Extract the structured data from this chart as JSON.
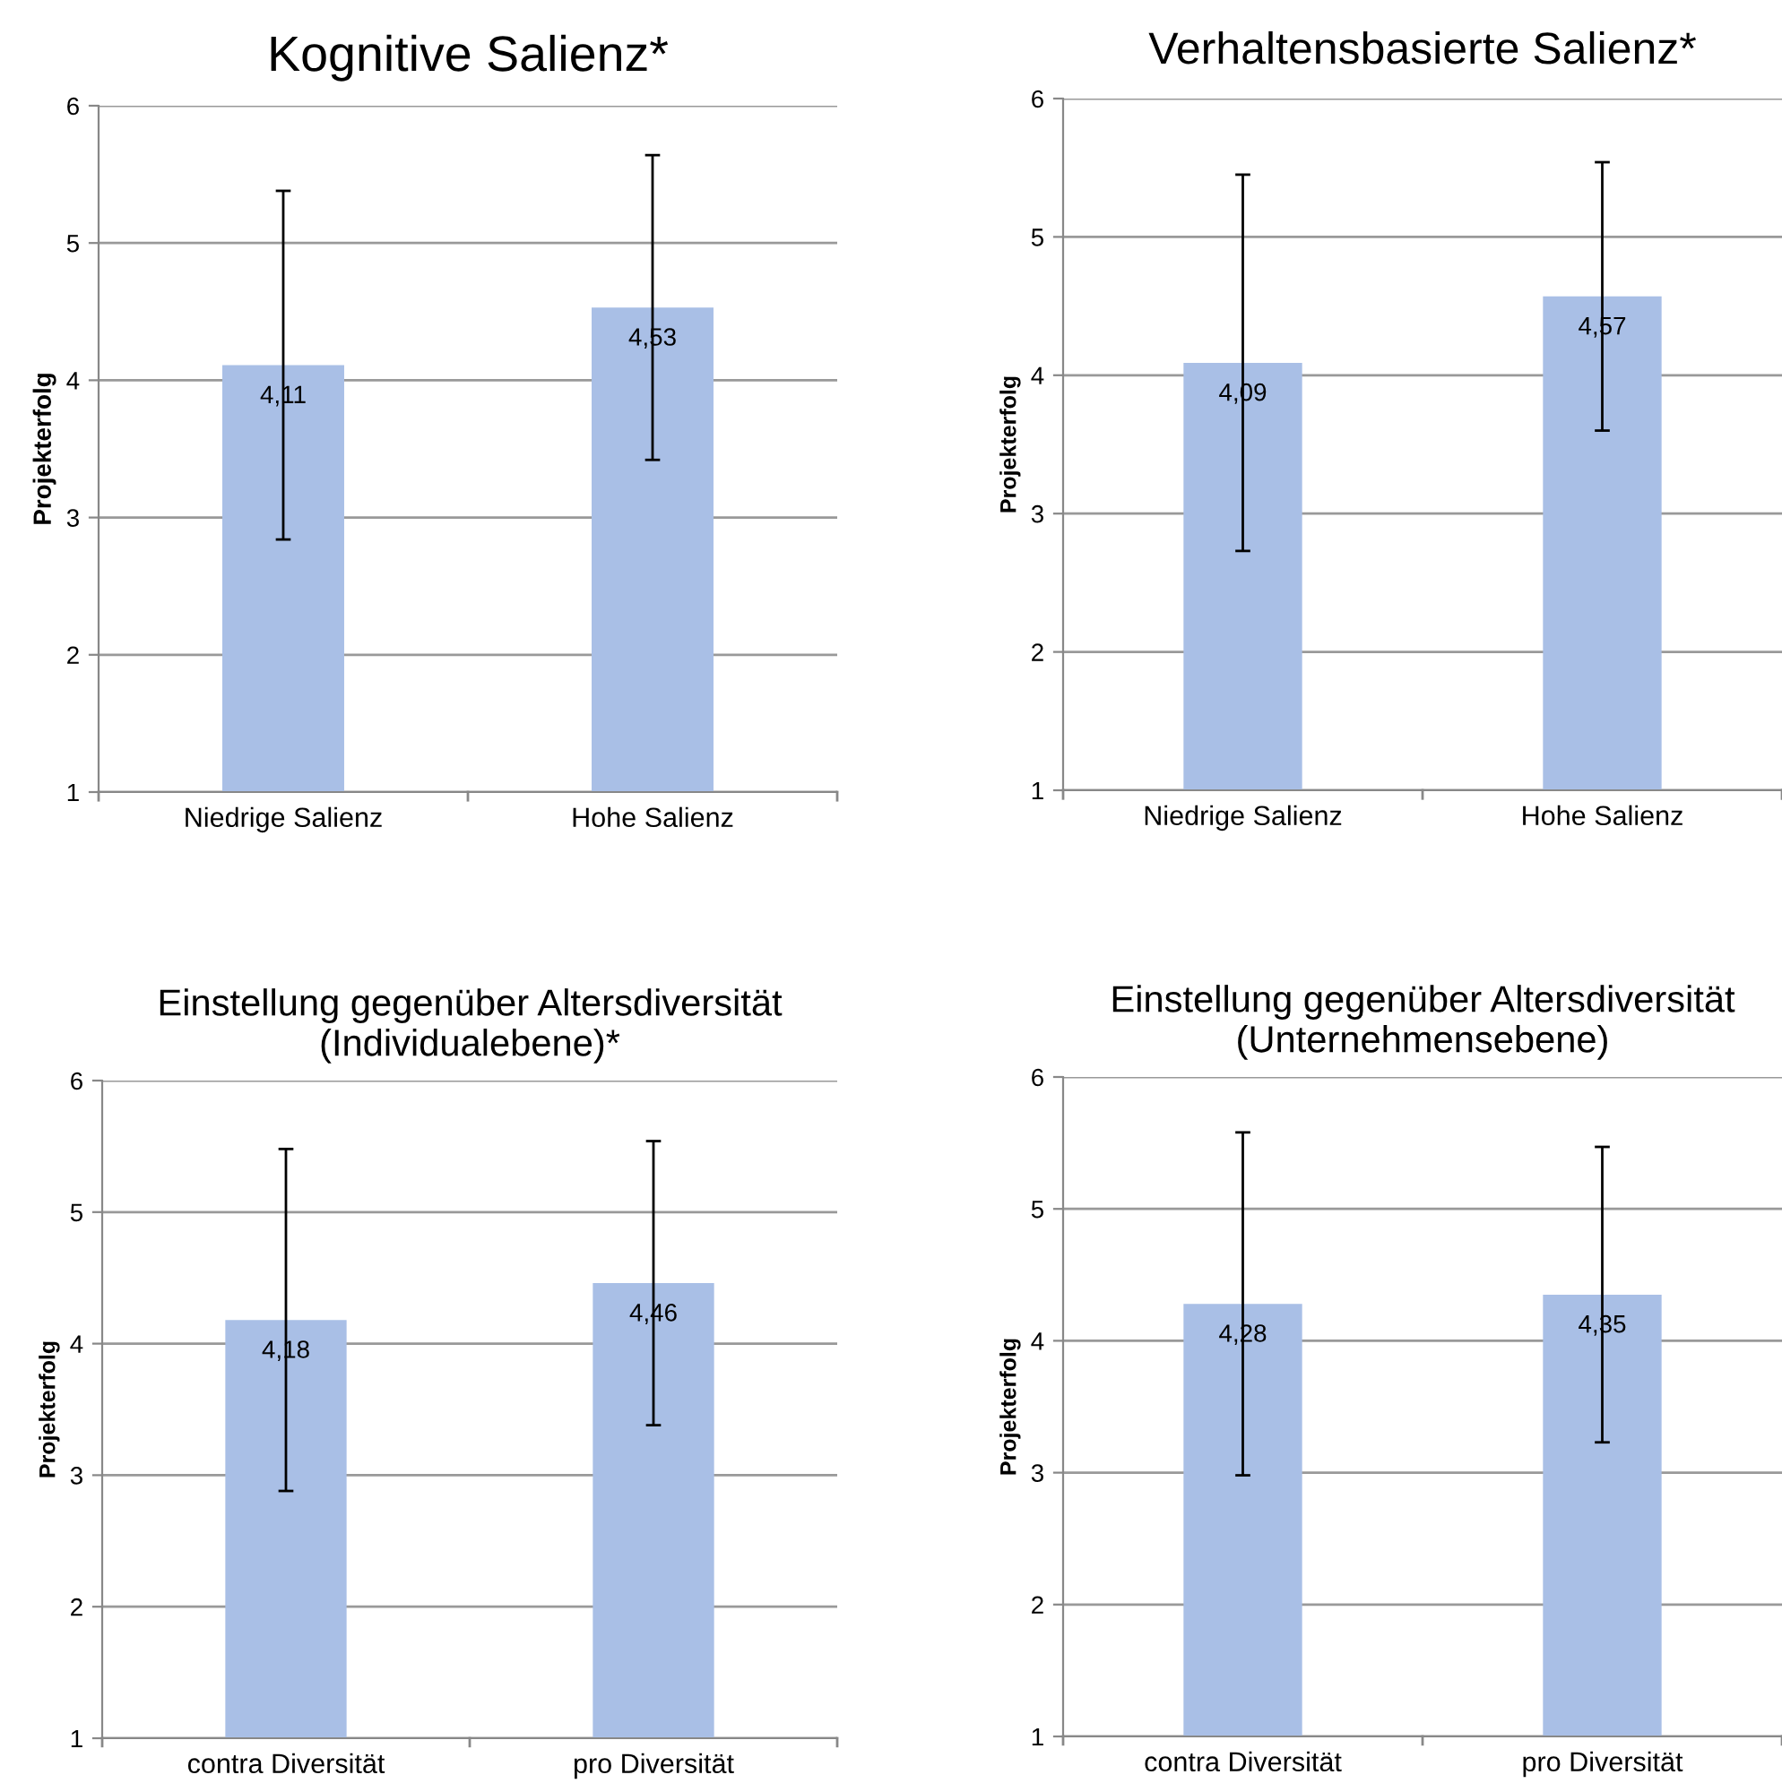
{
  "chart_data": [
    {
      "type": "bar",
      "title": "Kognitive Salienz*",
      "ylabel": "Projekterfolg",
      "categories": [
        "Niedrige Salienz",
        "Hohe Salienz"
      ],
      "values": [
        4.11,
        4.53
      ],
      "errors": [
        1.27,
        1.11
      ],
      "value_labels": [
        "4,11",
        "4,53"
      ],
      "color": "#a9bfe6",
      "ylim": [
        1,
        6
      ],
      "yticks": [
        1,
        2,
        3,
        4,
        5,
        6
      ],
      "grid": "y"
    },
    {
      "type": "bar",
      "title": "Verhaltensbasierte Salienz*",
      "ylabel": "Projekterfolg",
      "categories": [
        "Niedrige Salienz",
        "Hohe Salienz"
      ],
      "values": [
        4.09,
        4.57
      ],
      "errors": [
        1.36,
        0.97
      ],
      "value_labels": [
        "4,09",
        "4,57"
      ],
      "color": "#a9bfe6",
      "ylim": [
        1,
        6
      ],
      "yticks": [
        1,
        2,
        3,
        4,
        5,
        6
      ],
      "grid": "y"
    },
    {
      "type": "bar",
      "title": "Einstellung gegenüber Altersdiversität\n(Individualebene)*",
      "ylabel": "Projekterfolg",
      "categories": [
        "contra Diversität",
        "pro Diversität"
      ],
      "values": [
        4.18,
        4.46
      ],
      "errors": [
        1.3,
        1.08
      ],
      "value_labels": [
        "4,18",
        "4,46"
      ],
      "color": "#a9bfe6",
      "ylim": [
        1,
        6
      ],
      "yticks": [
        1,
        2,
        3,
        4,
        5,
        6
      ],
      "grid": "y"
    },
    {
      "type": "bar",
      "title": "Einstellung gegenüber Altersdiversität\n(Unternehmensebene)",
      "ylabel": "Projekterfolg",
      "categories": [
        "contra Diversität",
        "pro Diversität"
      ],
      "values": [
        4.28,
        4.35
      ],
      "errors": [
        1.3,
        1.12
      ],
      "value_labels": [
        "4,28",
        "4,35"
      ],
      "color": "#a9bfe6",
      "ylim": [
        1,
        6
      ],
      "yticks": [
        1,
        2,
        3,
        4,
        5,
        6
      ],
      "grid": "y"
    }
  ]
}
